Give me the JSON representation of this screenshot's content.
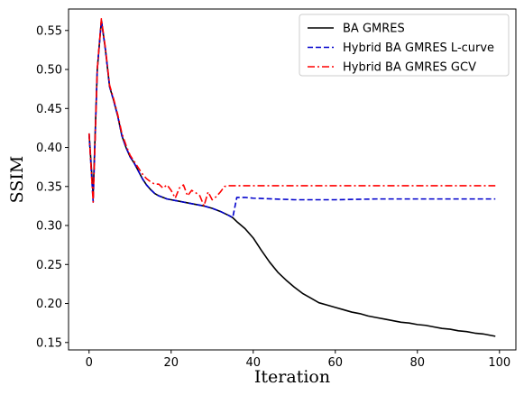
{
  "chart_data": {
    "type": "line",
    "title": "",
    "xlabel": "Iteration",
    "ylabel": "SSIM",
    "xlim": [
      -5,
      104
    ],
    "ylim": [
      0.1405,
      0.5775
    ],
    "xticks": [
      0,
      20,
      40,
      60,
      80,
      100
    ],
    "yticks": [
      0.15,
      0.2,
      0.25,
      0.3,
      0.35,
      0.4,
      0.45,
      0.5,
      0.55
    ],
    "ytick_labels": [
      "0.15",
      "0.20",
      "0.25",
      "0.30",
      "0.35",
      "0.40",
      "0.45",
      "0.50",
      "0.55"
    ],
    "grid": false,
    "legend_position": "top-right",
    "series": [
      {
        "name": "BA GMRES",
        "color": "#000000",
        "style": "solid",
        "x": [
          0,
          1,
          2,
          3,
          4,
          5,
          6,
          7,
          8,
          9,
          10,
          11,
          12,
          13,
          14,
          15,
          16,
          17,
          18,
          19,
          20,
          22,
          24,
          26,
          28,
          30,
          32,
          34,
          35,
          36,
          38,
          40,
          42,
          44,
          46,
          48,
          50,
          52,
          54,
          56,
          58,
          60,
          62,
          64,
          66,
          68,
          70,
          72,
          74,
          76,
          78,
          80,
          82,
          84,
          86,
          88,
          90,
          92,
          94,
          96,
          98,
          99
        ],
        "y": [
          0.418,
          0.34,
          0.5,
          0.563,
          0.525,
          0.478,
          0.46,
          0.44,
          0.415,
          0.4,
          0.388,
          0.38,
          0.37,
          0.36,
          0.352,
          0.346,
          0.341,
          0.338,
          0.336,
          0.334,
          0.333,
          0.331,
          0.329,
          0.327,
          0.325,
          0.322,
          0.318,
          0.313,
          0.31,
          0.305,
          0.296,
          0.284,
          0.268,
          0.253,
          0.24,
          0.23,
          0.221,
          0.213,
          0.207,
          0.201,
          0.198,
          0.195,
          0.192,
          0.189,
          0.187,
          0.184,
          0.182,
          0.18,
          0.178,
          0.176,
          0.175,
          0.173,
          0.172,
          0.17,
          0.168,
          0.167,
          0.165,
          0.164,
          0.162,
          0.161,
          0.159,
          0.158
        ]
      },
      {
        "name": "Hybrid BA GMRES L-curve",
        "color": "#0000cc",
        "style": "dashed",
        "x": [
          0,
          1,
          2,
          3,
          4,
          5,
          6,
          7,
          8,
          9,
          10,
          11,
          12,
          13,
          14,
          15,
          16,
          17,
          18,
          19,
          20,
          22,
          24,
          26,
          28,
          30,
          32,
          34,
          35,
          36,
          38,
          40,
          45,
          50,
          55,
          60,
          70,
          80,
          90,
          99
        ],
        "y": [
          0.418,
          0.33,
          0.5,
          0.563,
          0.525,
          0.478,
          0.46,
          0.44,
          0.415,
          0.4,
          0.388,
          0.38,
          0.37,
          0.36,
          0.352,
          0.346,
          0.341,
          0.338,
          0.336,
          0.334,
          0.333,
          0.331,
          0.329,
          0.327,
          0.325,
          0.322,
          0.318,
          0.313,
          0.31,
          0.336,
          0.336,
          0.335,
          0.334,
          0.333,
          0.333,
          0.333,
          0.334,
          0.334,
          0.334,
          0.334
        ]
      },
      {
        "name": "Hybrid BA GMRES GCV",
        "color": "#ff0000",
        "style": "dashdot",
        "x": [
          0,
          1,
          2,
          3,
          4,
          5,
          6,
          7,
          8,
          9,
          10,
          11,
          12,
          13,
          14,
          15,
          16,
          17,
          18,
          19,
          20,
          21,
          22,
          23,
          24,
          25,
          26,
          27,
          28,
          29,
          30,
          31,
          32,
          33,
          34,
          35,
          40,
          50,
          60,
          70,
          80,
          90,
          99
        ],
        "y": [
          0.418,
          0.33,
          0.5,
          0.565,
          0.527,
          0.48,
          0.462,
          0.442,
          0.418,
          0.403,
          0.39,
          0.382,
          0.374,
          0.366,
          0.36,
          0.356,
          0.353,
          0.353,
          0.348,
          0.352,
          0.345,
          0.335,
          0.348,
          0.352,
          0.338,
          0.345,
          0.342,
          0.338,
          0.325,
          0.343,
          0.333,
          0.337,
          0.343,
          0.35,
          0.351,
          0.351,
          0.351,
          0.351,
          0.351,
          0.351,
          0.351,
          0.351,
          0.351
        ]
      }
    ]
  }
}
